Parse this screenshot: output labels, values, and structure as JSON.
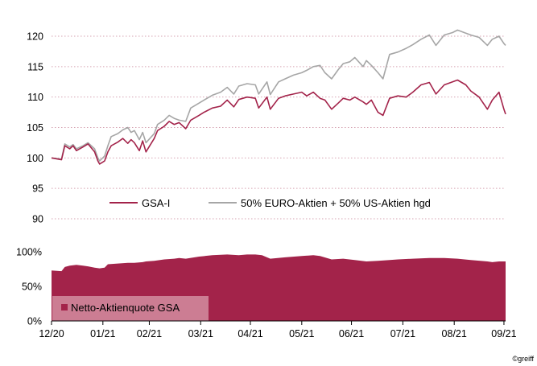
{
  "chart_data": [
    {
      "type": "line",
      "ylim": [
        90,
        122
      ],
      "yticks": [
        "90",
        "95",
        "100",
        "105",
        "110",
        "115",
        "120"
      ],
      "grid": "horizontal dotted",
      "legend_position": "bottom-center",
      "series": [
        {
          "name": "GSA-I",
          "color": "#a3234a",
          "points": [
            [
              "2020-12-31",
              100.0
            ],
            [
              "2021-01-06",
              99.7
            ],
            [
              "2021-01-08",
              102.0
            ],
            [
              "2021-01-11",
              101.5
            ],
            [
              "2021-01-13",
              102.0
            ],
            [
              "2021-01-15",
              101.2
            ],
            [
              "2021-01-19",
              101.8
            ],
            [
              "2021-01-22",
              102.3
            ],
            [
              "2021-01-26",
              101.0
            ],
            [
              "2021-01-28",
              99.5
            ],
            [
              "2021-01-29",
              99.0
            ],
            [
              "2021-02-01",
              99.5
            ],
            [
              "2021-02-03",
              101.0
            ],
            [
              "2021-02-05",
              102.0
            ],
            [
              "2021-02-09",
              102.6
            ],
            [
              "2021-02-12",
              103.2
            ],
            [
              "2021-02-15",
              102.4
            ],
            [
              "2021-02-17",
              103.0
            ],
            [
              "2021-02-19",
              102.5
            ],
            [
              "2021-02-22",
              101.2
            ],
            [
              "2021-02-24",
              102.8
            ],
            [
              "2021-02-26",
              101.0
            ],
            [
              "2021-03-03",
              103.2
            ],
            [
              "2021-03-05",
              104.5
            ],
            [
              "2021-03-09",
              105.2
            ],
            [
              "2021-03-12",
              106.0
            ],
            [
              "2021-03-15",
              105.5
            ],
            [
              "2021-03-18",
              105.8
            ],
            [
              "2021-03-22",
              104.8
            ],
            [
              "2021-03-25",
              106.2
            ],
            [
              "2021-03-30",
              107.0
            ],
            [
              "2021-04-02",
              107.5
            ],
            [
              "2021-04-07",
              108.2
            ],
            [
              "2021-04-12",
              108.5
            ],
            [
              "2021-04-16",
              109.5
            ],
            [
              "2021-04-20",
              108.4
            ],
            [
              "2021-04-23",
              109.6
            ],
            [
              "2021-04-28",
              110.0
            ],
            [
              "2021-05-03",
              109.8
            ],
            [
              "2021-05-05",
              108.2
            ],
            [
              "2021-05-10",
              110.0
            ],
            [
              "2021-05-12",
              108.0
            ],
            [
              "2021-05-17",
              109.8
            ],
            [
              "2021-05-21",
              110.2
            ],
            [
              "2021-05-26",
              110.5
            ],
            [
              "2021-05-31",
              110.8
            ],
            [
              "2021-06-03",
              110.2
            ],
            [
              "2021-06-07",
              110.8
            ],
            [
              "2021-06-11",
              109.8
            ],
            [
              "2021-06-14",
              109.5
            ],
            [
              "2021-06-18",
              108.0
            ],
            [
              "2021-06-22",
              109.0
            ],
            [
              "2021-06-25",
              109.8
            ],
            [
              "2021-06-29",
              109.5
            ],
            [
              "2021-07-02",
              110.0
            ],
            [
              "2021-07-07",
              109.2
            ],
            [
              "2021-07-09",
              108.8
            ],
            [
              "2021-07-12",
              109.5
            ],
            [
              "2021-07-16",
              107.5
            ],
            [
              "2021-07-19",
              107.0
            ],
            [
              "2021-07-23",
              109.8
            ],
            [
              "2021-07-28",
              110.2
            ],
            [
              "2021-08-02",
              110.0
            ],
            [
              "2021-08-06",
              110.8
            ],
            [
              "2021-08-11",
              112.0
            ],
            [
              "2021-08-16",
              112.4
            ],
            [
              "2021-08-20",
              110.5
            ],
            [
              "2021-08-25",
              112.0
            ],
            [
              "2021-08-30",
              112.5
            ],
            [
              "2021-09-02",
              112.8
            ],
            [
              "2021-09-07",
              112.0
            ],
            [
              "2021-09-10",
              111.0
            ],
            [
              "2021-09-15",
              110.0
            ],
            [
              "2021-09-20",
              108.0
            ],
            [
              "2021-09-23",
              109.5
            ],
            [
              "2021-09-27",
              110.8
            ],
            [
              "2021-09-30",
              108.0
            ],
            [
              "2021-10-01",
              107.2
            ]
          ]
        },
        {
          "name": "50% EURO-Aktien + 50% US-Aktien hgd",
          "color": "#a6a6a6",
          "points": [
            [
              "2020-12-31",
              100.0
            ],
            [
              "2021-01-06",
              99.8
            ],
            [
              "2021-01-08",
              102.3
            ],
            [
              "2021-01-11",
              101.8
            ],
            [
              "2021-01-13",
              102.2
            ],
            [
              "2021-01-15",
              101.5
            ],
            [
              "2021-01-19",
              102.0
            ],
            [
              "2021-01-22",
              102.5
            ],
            [
              "2021-01-26",
              101.5
            ],
            [
              "2021-01-28",
              100.0
            ],
            [
              "2021-01-29",
              99.5
            ],
            [
              "2021-02-01",
              100.3
            ],
            [
              "2021-02-03",
              102.0
            ],
            [
              "2021-02-05",
              103.5
            ],
            [
              "2021-02-09",
              104.0
            ],
            [
              "2021-02-12",
              104.6
            ],
            [
              "2021-02-15",
              105.0
            ],
            [
              "2021-02-17",
              104.2
            ],
            [
              "2021-02-19",
              104.5
            ],
            [
              "2021-02-22",
              103.0
            ],
            [
              "2021-02-24",
              104.2
            ],
            [
              "2021-02-26",
              102.5
            ],
            [
              "2021-03-03",
              104.0
            ],
            [
              "2021-03-05",
              105.5
            ],
            [
              "2021-03-09",
              106.2
            ],
            [
              "2021-03-12",
              107.0
            ],
            [
              "2021-03-15",
              106.5
            ],
            [
              "2021-03-18",
              106.2
            ],
            [
              "2021-03-22",
              106.0
            ],
            [
              "2021-03-25",
              108.2
            ],
            [
              "2021-03-30",
              109.0
            ],
            [
              "2021-04-02",
              109.5
            ],
            [
              "2021-04-07",
              110.3
            ],
            [
              "2021-04-12",
              110.8
            ],
            [
              "2021-04-16",
              111.6
            ],
            [
              "2021-04-20",
              110.5
            ],
            [
              "2021-04-23",
              111.8
            ],
            [
              "2021-04-28",
              112.2
            ],
            [
              "2021-05-03",
              112.0
            ],
            [
              "2021-05-05",
              110.5
            ],
            [
              "2021-05-10",
              112.5
            ],
            [
              "2021-05-12",
              110.4
            ],
            [
              "2021-05-17",
              112.5
            ],
            [
              "2021-05-21",
              113.0
            ],
            [
              "2021-05-26",
              113.6
            ],
            [
              "2021-05-31",
              114.0
            ],
            [
              "2021-06-03",
              114.4
            ],
            [
              "2021-06-07",
              115.0
            ],
            [
              "2021-06-11",
              115.2
            ],
            [
              "2021-06-14",
              114.0
            ],
            [
              "2021-06-18",
              113.0
            ],
            [
              "2021-06-22",
              114.5
            ],
            [
              "2021-06-25",
              115.5
            ],
            [
              "2021-06-29",
              115.8
            ],
            [
              "2021-07-02",
              116.5
            ],
            [
              "2021-07-07",
              115.0
            ],
            [
              "2021-07-09",
              116.0
            ],
            [
              "2021-07-12",
              115.2
            ],
            [
              "2021-07-16",
              114.0
            ],
            [
              "2021-07-19",
              113.0
            ],
            [
              "2021-07-23",
              117.0
            ],
            [
              "2021-07-28",
              117.4
            ],
            [
              "2021-08-02",
              118.0
            ],
            [
              "2021-08-06",
              118.6
            ],
            [
              "2021-08-11",
              119.5
            ],
            [
              "2021-08-16",
              120.2
            ],
            [
              "2021-08-20",
              118.5
            ],
            [
              "2021-08-25",
              120.2
            ],
            [
              "2021-08-30",
              120.6
            ],
            [
              "2021-09-02",
              121.0
            ],
            [
              "2021-09-07",
              120.5
            ],
            [
              "2021-09-10",
              120.2
            ],
            [
              "2021-09-15",
              119.8
            ],
            [
              "2021-09-20",
              118.5
            ],
            [
              "2021-09-23",
              119.5
            ],
            [
              "2021-09-27",
              120.0
            ],
            [
              "2021-09-30",
              118.8
            ],
            [
              "2021-10-01",
              118.5
            ]
          ]
        }
      ]
    },
    {
      "type": "area",
      "ylim": [
        0,
        1
      ],
      "yticks": [
        "0%",
        "50%",
        "100%"
      ],
      "legend_position": "bottom-left",
      "series": [
        {
          "name": "Netto-Aktienquote GSA",
          "color": "#a3234a",
          "points": [
            [
              "2020-12-31",
              0.73
            ],
            [
              "2021-01-06",
              0.72
            ],
            [
              "2021-01-08",
              0.78
            ],
            [
              "2021-01-11",
              0.8
            ],
            [
              "2021-01-15",
              0.81
            ],
            [
              "2021-01-19",
              0.8
            ],
            [
              "2021-01-22",
              0.79
            ],
            [
              "2021-01-26",
              0.77
            ],
            [
              "2021-01-29",
              0.76
            ],
            [
              "2021-02-01",
              0.77
            ],
            [
              "2021-02-03",
              0.82
            ],
            [
              "2021-02-09",
              0.83
            ],
            [
              "2021-02-15",
              0.84
            ],
            [
              "2021-02-19",
              0.84
            ],
            [
              "2021-02-24",
              0.85
            ],
            [
              "2021-02-26",
              0.86
            ],
            [
              "2021-03-03",
              0.87
            ],
            [
              "2021-03-09",
              0.89
            ],
            [
              "2021-03-15",
              0.9
            ],
            [
              "2021-03-18",
              0.91
            ],
            [
              "2021-03-22",
              0.9
            ],
            [
              "2021-03-30",
              0.93
            ],
            [
              "2021-04-07",
              0.95
            ],
            [
              "2021-04-16",
              0.96
            ],
            [
              "2021-04-23",
              0.95
            ],
            [
              "2021-04-28",
              0.96
            ],
            [
              "2021-05-03",
              0.96
            ],
            [
              "2021-05-07",
              0.95
            ],
            [
              "2021-05-12",
              0.9
            ],
            [
              "2021-05-21",
              0.92
            ],
            [
              "2021-05-31",
              0.94
            ],
            [
              "2021-06-07",
              0.95
            ],
            [
              "2021-06-11",
              0.94
            ],
            [
              "2021-06-18",
              0.89
            ],
            [
              "2021-06-25",
              0.9
            ],
            [
              "2021-07-02",
              0.88
            ],
            [
              "2021-07-09",
              0.86
            ],
            [
              "2021-07-16",
              0.87
            ],
            [
              "2021-07-23",
              0.88
            ],
            [
              "2021-07-28",
              0.89
            ],
            [
              "2021-08-06",
              0.9
            ],
            [
              "2021-08-16",
              0.91
            ],
            [
              "2021-08-25",
              0.91
            ],
            [
              "2021-09-02",
              0.9
            ],
            [
              "2021-09-10",
              0.88
            ],
            [
              "2021-09-20",
              0.86
            ],
            [
              "2021-09-23",
              0.85
            ],
            [
              "2021-09-27",
              0.86
            ],
            [
              "2021-10-01",
              0.86
            ]
          ]
        }
      ]
    }
  ],
  "x_axis": {
    "tick_labels": [
      "12/20",
      "01/21",
      "02/21",
      "03/21",
      "04/21",
      "05/21",
      "06/21",
      "07/21",
      "08/21",
      "09/21"
    ],
    "tick_dates": [
      "2020-12-31",
      "2021-01-31",
      "2021-02-28",
      "2021-03-31",
      "2021-04-30",
      "2021-05-31",
      "2021-06-30",
      "2021-07-31",
      "2021-08-31",
      "2021-09-30"
    ]
  },
  "copyright": "©greiff"
}
